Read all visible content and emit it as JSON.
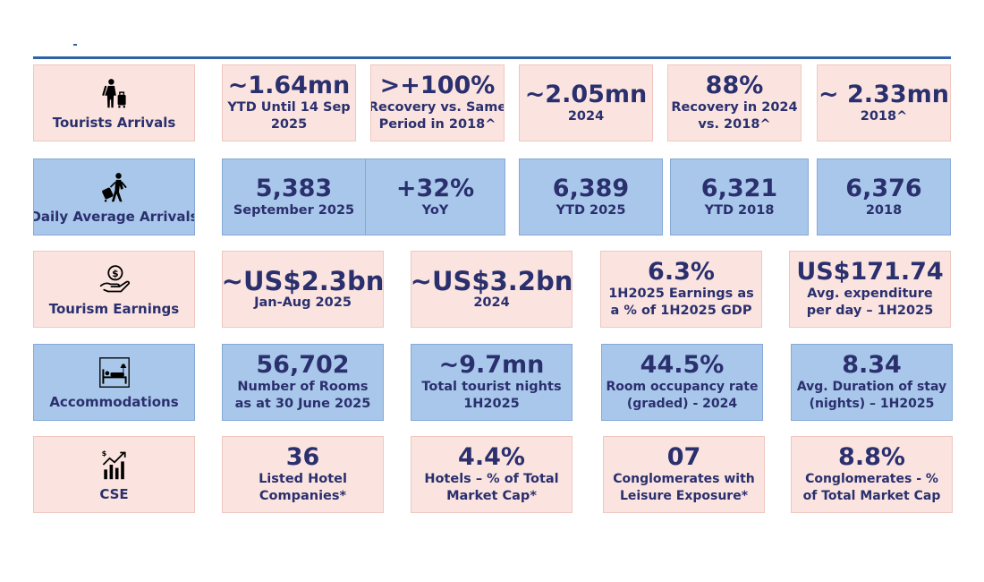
{
  "colors": {
    "pink": "#fbe4e0",
    "blue": "#a9c7ea",
    "text": "#2a2f6e",
    "rule": "#2f63a6"
  },
  "rows": [
    {
      "category": "Tourists Arrivals",
      "icon": "tourist-with-luggage-icon",
      "cells": [
        {
          "value": "~1.64mn",
          "caption": [
            "YTD Until 14 Sep",
            "2025"
          ]
        },
        {
          "value": ">+100%",
          "caption": [
            "Recovery vs. Same",
            "Period in 2018^"
          ]
        },
        {
          "value": "~2.05mn",
          "caption": [
            "2024"
          ]
        },
        {
          "value": "88%",
          "caption": [
            "Recovery in 2024",
            "vs. 2018^"
          ]
        },
        {
          "value": "~ 2.33mn",
          "caption": [
            "2018^"
          ]
        }
      ]
    },
    {
      "category": "Daily Average Arrivals",
      "icon": "walking-traveler-icon",
      "cells": [
        {
          "value": "5,383",
          "caption": [
            "September 2025"
          ]
        },
        {
          "value": "+32%",
          "caption": [
            "YoY"
          ]
        },
        {
          "value": "6,389",
          "caption": [
            "YTD 2025"
          ]
        },
        {
          "value": "6,321",
          "caption": [
            "YTD 2018"
          ]
        },
        {
          "value": "6,376",
          "caption": [
            "2018"
          ]
        }
      ]
    },
    {
      "category": "Tourism Earnings",
      "icon": "hand-coin-icon",
      "cells": [
        {
          "value": "~US$2.3bn",
          "caption": [
            "Jan-Aug 2025"
          ]
        },
        {
          "value": "~US$3.2bn",
          "caption": [
            "2024"
          ]
        },
        {
          "value": "6.3%",
          "caption": [
            "1H2025 Earnings as",
            "a % of 1H2025 GDP"
          ]
        },
        {
          "value": "US$171.74",
          "caption": [
            "Avg. expenditure",
            "per day – 1H2025"
          ]
        }
      ]
    },
    {
      "category": "Accommodations",
      "icon": "hotel-bed-icon",
      "cells": [
        {
          "value": "56,702",
          "caption": [
            "Number of Rooms",
            "as at 30 June 2025"
          ]
        },
        {
          "value": "~9.7mn",
          "caption": [
            "Total tourist nights",
            "1H2025"
          ]
        },
        {
          "value": "44.5%",
          "caption": [
            "Room occupancy rate",
            "(graded) - 2024"
          ]
        },
        {
          "value": "8.34",
          "caption": [
            "Avg. Duration of stay",
            "(nights) – 1H2025"
          ]
        }
      ]
    },
    {
      "category": "CSE",
      "icon": "stock-growth-chart-icon",
      "cells": [
        {
          "value": "36",
          "caption": [
            "Listed Hotel",
            "Companies*"
          ]
        },
        {
          "value": "4.4%",
          "caption": [
            "Hotels – % of Total",
            "Market Cap*"
          ]
        },
        {
          "value": "07",
          "caption": [
            "Conglomerates with",
            "Leisure Exposure*"
          ]
        },
        {
          "value": "8.8%",
          "caption": [
            "Conglomerates  - %",
            "of Total Market Cap"
          ]
        }
      ]
    }
  ]
}
